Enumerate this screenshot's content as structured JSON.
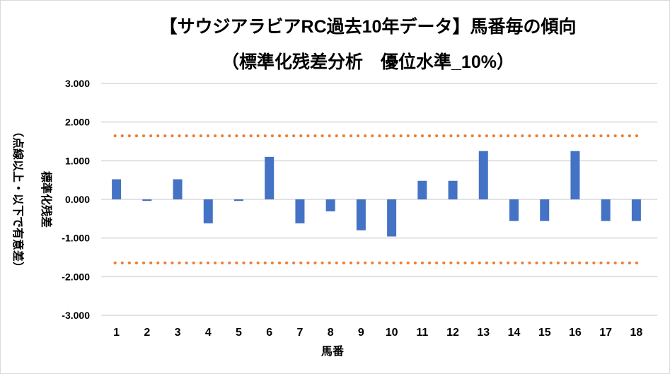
{
  "chart_data": {
    "type": "bar",
    "title": "【サウジアラビアRC過去10年データ】馬番毎の傾向",
    "subtitle": "（標準化残差分析　優位水準_10%）",
    "xlabel": "馬番",
    "ylabel": "標準化残差",
    "ylabel_note": "（点線以上・以下で有意差）",
    "categories": [
      "1",
      "2",
      "3",
      "4",
      "5",
      "6",
      "7",
      "8",
      "9",
      "10",
      "11",
      "12",
      "13",
      "14",
      "15",
      "16",
      "17",
      "18"
    ],
    "values": [
      0.52,
      -0.04,
      0.52,
      -0.62,
      -0.04,
      1.1,
      -0.62,
      -0.31,
      -0.8,
      -0.96,
      0.48,
      0.48,
      1.25,
      -0.56,
      -0.56,
      1.25,
      -0.56,
      -0.56
    ],
    "threshold_lines": [
      1.645,
      -1.645
    ],
    "ylim": [
      -3,
      3
    ],
    "yticks": [
      "3.000",
      "2.000",
      "1.000",
      "0.000",
      "-1.000",
      "-2.000",
      "-3.000"
    ],
    "ytick_values": [
      3,
      2,
      1,
      0,
      -1,
      -2,
      -3
    ],
    "grid": true,
    "bar_color": "#4472c4",
    "threshold_color": "#ed7d31",
    "grid_color": "#d9d9d9"
  }
}
